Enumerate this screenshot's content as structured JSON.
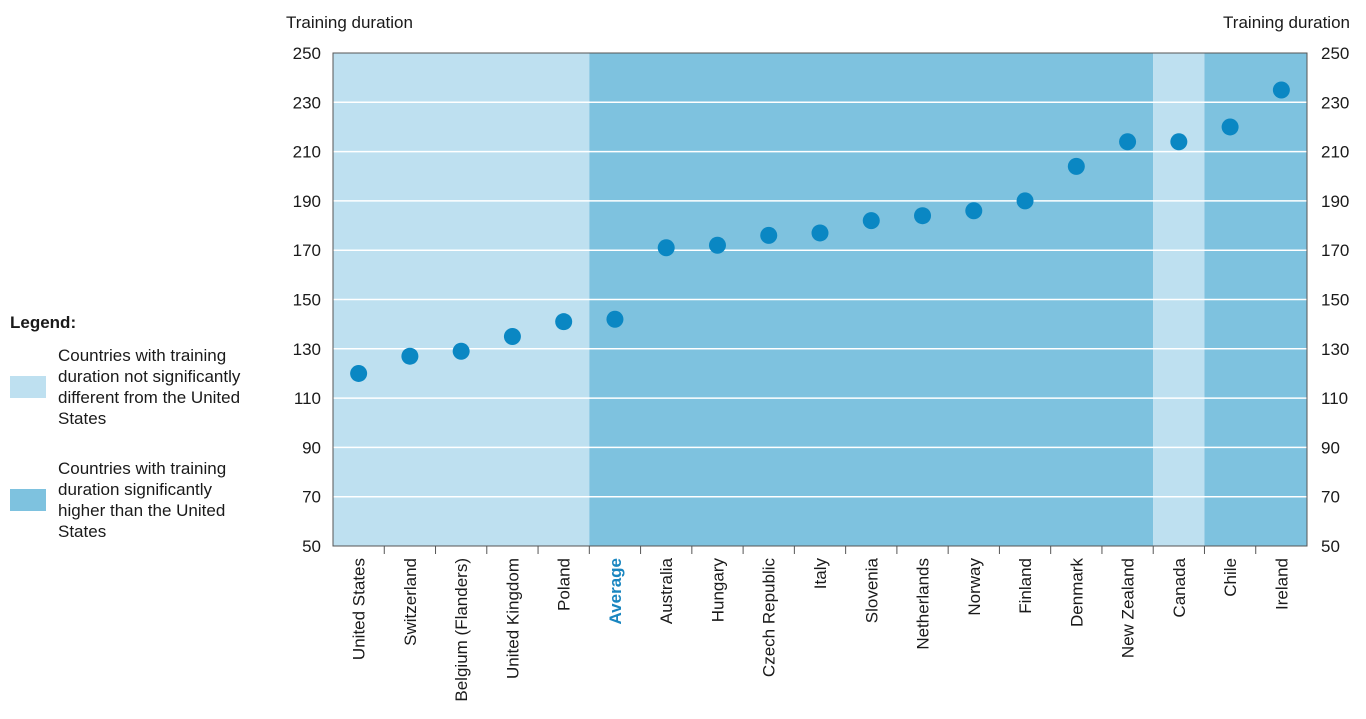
{
  "colors": {
    "not_different": "#bee0f0",
    "higher": "#7ec2df",
    "marker": "#0a87c3",
    "average_label": "#1a86c0",
    "grid": "#ffffff"
  },
  "legend": {
    "title": "Legend:",
    "items": [
      {
        "label": "Countries with training duration not significantly different from the United States",
        "color_key": "not_different"
      },
      {
        "label": "Countries with training duration significantly higher than the United States",
        "color_key": "higher"
      }
    ]
  },
  "chart_data": {
    "type": "scatter",
    "ylabel_left": "Training duration",
    "ylabel_right": "Training duration",
    "ylim": [
      50,
      250
    ],
    "yticks": [
      50,
      70,
      90,
      110,
      130,
      150,
      170,
      190,
      210,
      230,
      250
    ],
    "grid": true,
    "categories": [
      "United States",
      "Switzerland",
      "Belgium (Flanders)",
      "United Kingdom",
      "Poland",
      "Average",
      "Australia",
      "Hungary",
      "Czech Republic",
      "Italy",
      "Slovenia",
      "Netherlands",
      "Norway",
      "Finland",
      "Denmark",
      "New Zealand",
      "Canada",
      "Chile",
      "Ireland"
    ],
    "values": [
      120,
      127,
      129,
      135,
      141,
      142,
      171,
      172,
      176,
      177,
      182,
      184,
      186,
      190,
      204,
      214,
      214,
      220,
      235
    ],
    "groups": [
      "not_different",
      "not_different",
      "not_different",
      "not_different",
      "not_different",
      "higher",
      "higher",
      "higher",
      "higher",
      "higher",
      "higher",
      "higher",
      "higher",
      "higher",
      "higher",
      "higher",
      "not_different",
      "higher",
      "higher"
    ],
    "highlight_category": "Average"
  }
}
